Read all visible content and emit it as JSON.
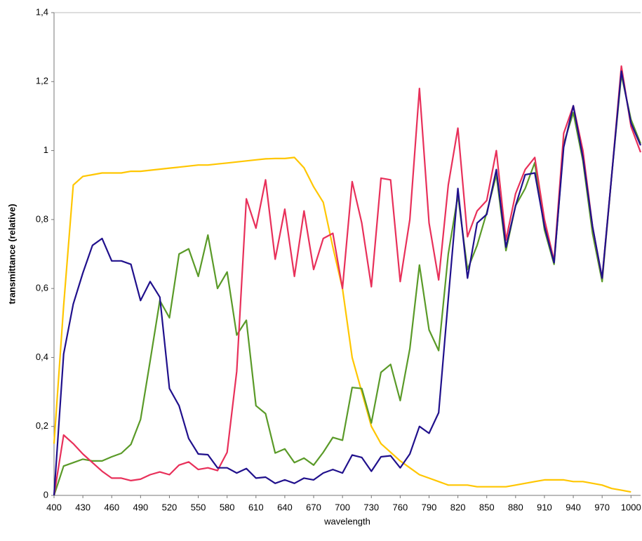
{
  "chart_data": {
    "type": "line",
    "x_label": "wavelength",
    "y_label": "transmittance (relative)",
    "categories": [
      "400",
      null,
      null,
      "430",
      null,
      null,
      "460",
      null,
      null,
      "490",
      null,
      null,
      "520",
      null,
      null,
      "550",
      null,
      null,
      "580",
      null,
      null,
      "610",
      null,
      null,
      "640",
      null,
      null,
      "670",
      null,
      null,
      "700",
      null,
      null,
      "730",
      null,
      null,
      "760",
      null,
      null,
      "790",
      null,
      null,
      "820",
      null,
      null,
      "850",
      null,
      null,
      "880",
      null,
      null,
      "910",
      null,
      null,
      "940",
      null,
      null,
      "970",
      null,
      null,
      "1000",
      null
    ],
    "ylim": [
      0,
      1.4
    ],
    "yticks": [
      0,
      {
        "value": 0.2,
        "label": "0,2"
      },
      {
        "value": 0.4,
        "label": "0,4"
      },
      {
        "value": 0.6,
        "label": "0,6"
      },
      {
        "value": 0.8,
        "label": "0,8"
      },
      1,
      {
        "value": 1.2,
        "label": "1,2"
      },
      {
        "value": 1.4,
        "label": "1,4"
      }
    ],
    "grid": false,
    "series": [
      {
        "color": "#ffc600",
        "values": [
          0.15,
          0.55,
          0.9,
          0.925,
          0.93,
          0.935,
          0.935,
          0.935,
          0.94,
          0.94,
          0.943,
          0.946,
          0.949,
          0.952,
          0.955,
          0.958,
          0.958,
          0.961,
          0.964,
          0.967,
          0.97,
          0.973,
          0.976,
          0.977,
          0.977,
          0.98,
          0.95,
          0.895,
          0.85,
          0.72,
          0.6,
          0.4,
          0.3,
          0.2,
          0.15,
          0.125,
          0.1,
          0.08,
          0.06,
          0.05,
          0.04,
          0.03,
          0.03,
          0.03,
          0.025,
          0.025,
          0.025,
          0.025,
          0.03,
          0.035,
          0.04,
          0.045,
          0.045,
          0.045,
          0.04,
          0.04,
          0.035,
          0.03,
          0.02,
          0.015,
          0.01,
          null
        ]
      },
      {
        "color": "#5a9a28",
        "values": [
          0,
          0.085,
          0.095,
          0.105,
          0.1,
          0.1,
          0.112,
          0.122,
          0.148,
          0.22,
          0.39,
          0.565,
          0.515,
          0.7,
          0.715,
          0.635,
          0.755,
          0.6,
          0.648,
          0.465,
          0.508,
          0.26,
          0.237,
          0.123,
          0.135,
          0.095,
          0.108,
          0.088,
          0.125,
          0.168,
          0.16,
          0.313,
          0.31,
          0.21,
          0.357,
          0.38,
          0.275,
          0.425,
          0.668,
          0.48,
          0.42,
          0.7,
          0.87,
          0.655,
          0.725,
          0.82,
          0.93,
          0.71,
          0.84,
          0.89,
          0.965,
          0.77,
          0.67,
          1.02,
          1.11,
          0.97,
          0.76,
          0.62,
          0.93,
          1.22,
          1.09,
          1.02
        ]
      },
      {
        "color": "#e8305a",
        "values": [
          0,
          0.175,
          0.15,
          0.12,
          0.095,
          0.07,
          0.05,
          0.05,
          0.043,
          0.047,
          0.06,
          0.068,
          0.06,
          0.088,
          0.097,
          0.075,
          0.08,
          0.072,
          0.125,
          0.36,
          0.86,
          0.775,
          0.915,
          0.685,
          0.83,
          0.635,
          0.825,
          0.655,
          0.745,
          0.76,
          0.6,
          0.91,
          0.79,
          0.605,
          0.92,
          0.915,
          0.62,
          0.8,
          1.18,
          0.79,
          0.625,
          0.9,
          1.065,
          0.75,
          0.825,
          0.855,
          1.0,
          0.74,
          0.875,
          0.945,
          0.98,
          0.8,
          0.68,
          1.05,
          1.13,
          1.0,
          0.78,
          0.63,
          0.93,
          1.245,
          1.07,
          0.995
        ]
      },
      {
        "color": "#20108c",
        "values": [
          0,
          0.41,
          0.555,
          0.645,
          0.725,
          0.745,
          0.68,
          0.68,
          0.67,
          0.565,
          0.62,
          0.575,
          0.31,
          0.26,
          0.165,
          0.12,
          0.118,
          0.08,
          0.08,
          0.065,
          0.078,
          0.05,
          0.053,
          0.035,
          0.045,
          0.035,
          0.05,
          0.045,
          0.065,
          0.075,
          0.065,
          0.117,
          0.11,
          0.07,
          0.112,
          0.115,
          0.08,
          0.12,
          0.2,
          0.18,
          0.24,
          0.57,
          0.89,
          0.63,
          0.79,
          0.815,
          0.945,
          0.72,
          0.84,
          0.93,
          0.935,
          0.78,
          0.675,
          1.01,
          1.13,
          0.98,
          0.78,
          0.63,
          0.93,
          1.23,
          1.08,
          1.015
        ]
      }
    ]
  }
}
